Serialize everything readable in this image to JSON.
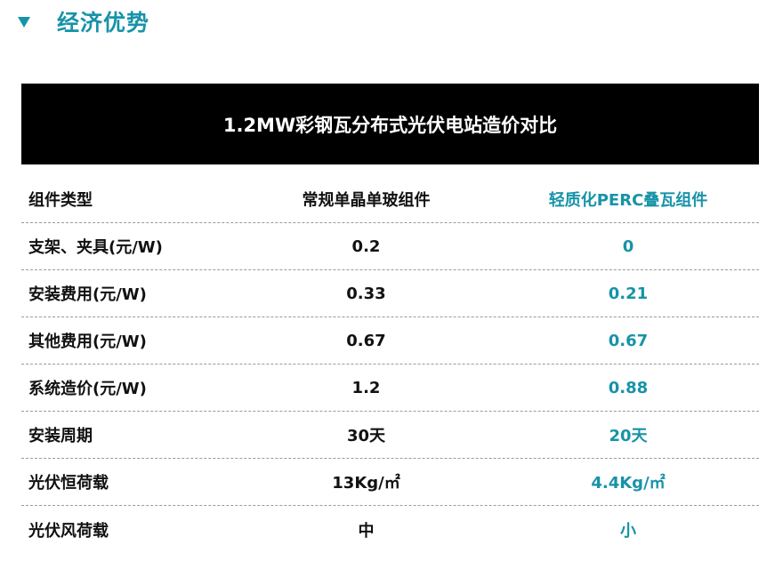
{
  "section": {
    "title": "经济优势",
    "icon": "triangle-down-icon",
    "accent_color": "#1793a8"
  },
  "table": {
    "title": "1.2MW彩钢瓦分布式光伏电站造价对比",
    "columns": [
      "组件类型",
      "常规单晶单玻组件",
      "轻质化PERC叠瓦组件"
    ],
    "rows": [
      {
        "label": "支架、夹具(元/W)",
        "a": "0.2",
        "b": "0"
      },
      {
        "label": "安装费用(元/W)",
        "a": "0.33",
        "b": "0.21"
      },
      {
        "label": "其他费用(元/W)",
        "a": "0.67",
        "b": "0.67"
      },
      {
        "label": "系统造价(元/W)",
        "a": "1.2",
        "b": "0.88"
      },
      {
        "label": "安装周期",
        "a": "30天",
        "b": "20天"
      },
      {
        "label": "光伏恒荷载",
        "a": "13Kg/㎡",
        "b": "4.4Kg/㎡"
      },
      {
        "label": "光伏风荷载",
        "a": "中",
        "b": "小"
      }
    ]
  }
}
